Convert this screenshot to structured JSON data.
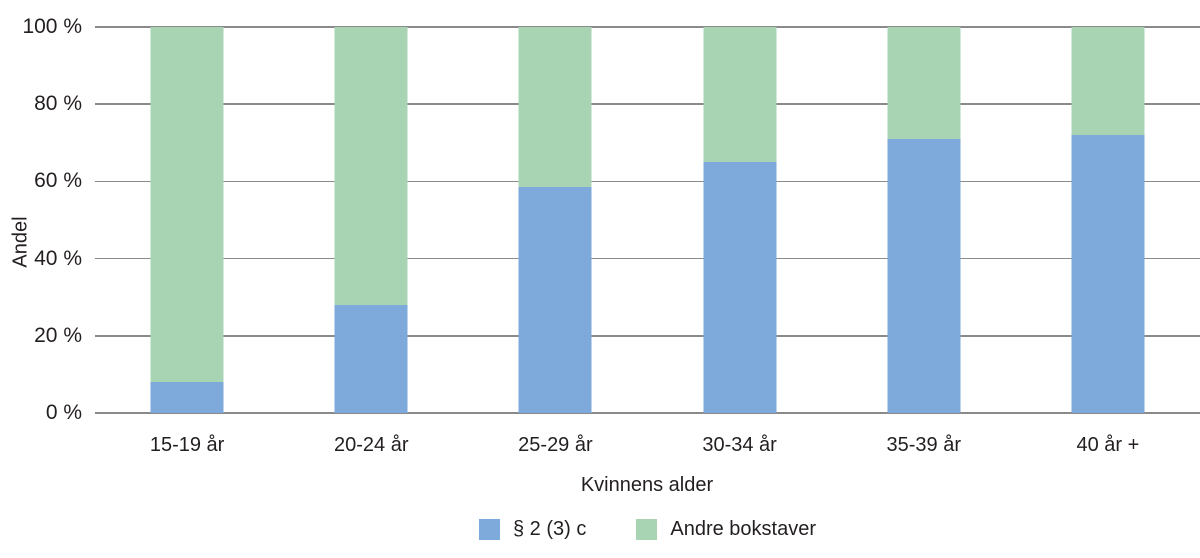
{
  "figure": {
    "background": "#ffffff",
    "text_color": "#231f20",
    "gridline_color": "#8a8a8a"
  },
  "chart_data": {
    "type": "bar",
    "stacked": true,
    "orientation": "vertical",
    "title": "",
    "xlabel": "Kvinnens alder",
    "ylabel": "Andel",
    "ylim": [
      0,
      100
    ],
    "grid": true,
    "legend_position": "bottom",
    "categories": [
      "15-19 år",
      "20-24 år",
      "25-29 år",
      "30-34 år",
      "35-39 år",
      "40 år +"
    ],
    "series": [
      {
        "name": "§ 2 (3) c",
        "color": "#7daadb",
        "values": [
          8,
          28,
          58.5,
          65,
          71,
          72
        ]
      },
      {
        "name": "Andre bokstaver",
        "color": "#a8d4b4",
        "values": [
          92,
          72,
          41.5,
          35,
          29,
          28
        ]
      }
    ],
    "y_ticks": [
      {
        "value": 0,
        "label": "0 %"
      },
      {
        "value": 20,
        "label": "20 %"
      },
      {
        "value": 40,
        "label": "40 %"
      },
      {
        "value": 60,
        "label": "60 %"
      },
      {
        "value": 80,
        "label": "80 %"
      },
      {
        "value": 100,
        "label": "100 %"
      }
    ]
  }
}
